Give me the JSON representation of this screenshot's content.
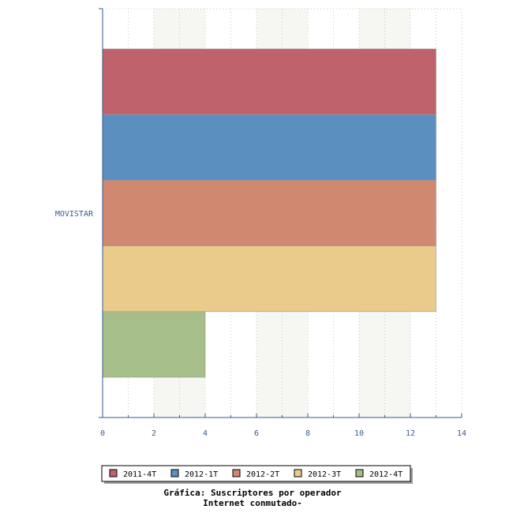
{
  "chart_data": {
    "type": "bar",
    "orientation": "horizontal",
    "categories": [
      "MOVISTAR"
    ],
    "series": [
      {
        "name": "2011-4T",
        "values": [
          13
        ],
        "color": "#c0626b"
      },
      {
        "name": "2012-1T",
        "values": [
          13
        ],
        "color": "#5b8fc0"
      },
      {
        "name": "2012-2T",
        "values": [
          13
        ],
        "color": "#d08870"
      },
      {
        "name": "2012-3T",
        "values": [
          13
        ],
        "color": "#eacb8c"
      },
      {
        "name": "2012-4T",
        "values": [
          4
        ],
        "color": "#a6be8a"
      }
    ],
    "xlim": [
      0,
      14
    ],
    "xticks": [
      0,
      2,
      4,
      6,
      8,
      10,
      12,
      14
    ],
    "grid": true,
    "legend_position": "bottom",
    "caption_lines": [
      "Gráfica: Suscriptores por operador",
      "Internet conmutado-"
    ]
  }
}
